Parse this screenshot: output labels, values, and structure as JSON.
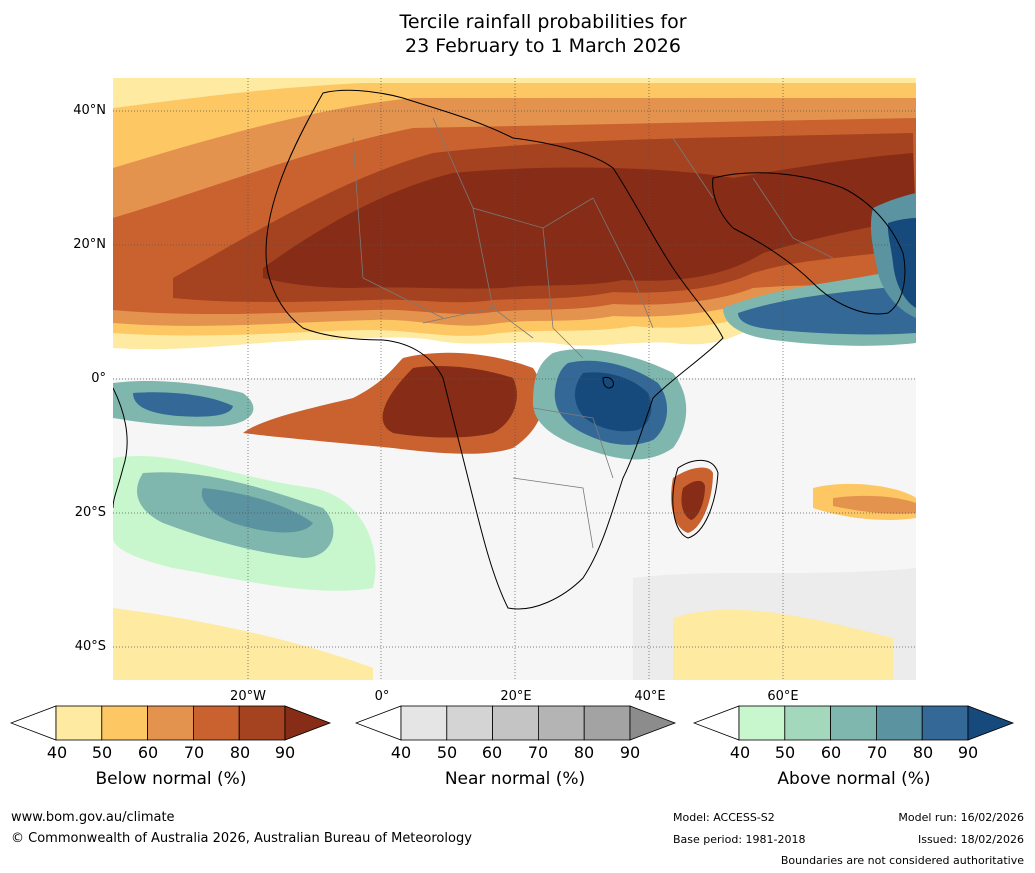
{
  "header": {
    "title_line1": "Tercile rainfall probabilities for",
    "title_line2": "23 February to 1 March 2026"
  },
  "map": {
    "lat_labels": [
      "40°N",
      "20°N",
      "0°",
      "20°S",
      "40°S"
    ],
    "lon_labels": [
      "20°W",
      "0°",
      "20°E",
      "40°E",
      "60°E"
    ],
    "colors": {
      "below": [
        "#ffffff",
        "#feeaa0",
        "#fdc764",
        "#e3934d",
        "#c9622f",
        "#a5421f",
        "#862c17"
      ],
      "near": [
        "#ffffff",
        "#e5e5e5",
        "#d4d4d4",
        "#c4c4c4",
        "#b4b4b4",
        "#a3a3a3",
        "#8c8c8c"
      ],
      "above": [
        "#ffffff",
        "#c8f7cd",
        "#a4d8bd",
        "#7fb7ae",
        "#5b93a0",
        "#336897",
        "#164a7d"
      ],
      "ocean_lines": "#000000",
      "borders": "#7a7a7a"
    }
  },
  "legends": [
    {
      "title": "Below normal (%)",
      "ticks": [
        "40",
        "50",
        "60",
        "70",
        "80",
        "90"
      ]
    },
    {
      "title": "Near normal (%)",
      "ticks": [
        "40",
        "50",
        "60",
        "70",
        "80",
        "90"
      ]
    },
    {
      "title": "Above normal (%)",
      "ticks": [
        "40",
        "50",
        "60",
        "70",
        "80",
        "90"
      ]
    }
  ],
  "footer": {
    "website": "www.bom.gov.au/climate",
    "copyright": "© Commonwealth of Australia 2026, Australian Bureau of Meteorology",
    "model": "Model: ACCESS-S2",
    "base_period": "Base period: 1981-2018",
    "model_run": "Model run: 16/02/2026",
    "issued": "Issued: 18/02/2026",
    "disclaimer": "Boundaries are not considered authoritative"
  }
}
